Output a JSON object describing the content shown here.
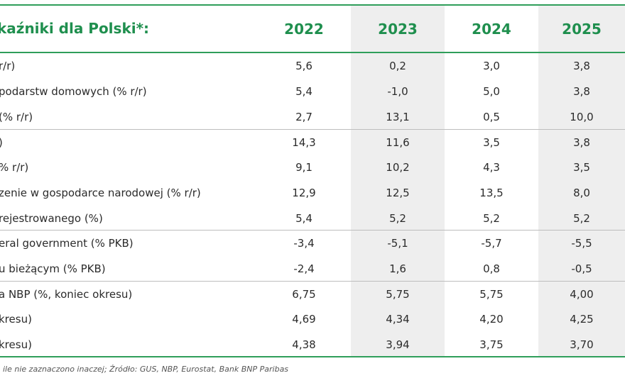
{
  "table": {
    "title": "kaźniki dla Polski*:",
    "years": [
      "2022",
      "2023",
      "2024",
      "2025"
    ],
    "rows": [
      {
        "label": " r/r)",
        "values": [
          "5,6",
          "0,2",
          "3,0",
          "3,8"
        ]
      },
      {
        "label": "podarstw domowych (% r/r)",
        "values": [
          "5,4",
          "-1,0",
          "5,0",
          "3,8"
        ]
      },
      {
        "label": " (% r/r)",
        "values": [
          "2,7",
          "13,1",
          "0,5",
          "10,0"
        ]
      },
      {
        "label": ")",
        "values": [
          "14,3",
          "11,6",
          "3,5",
          "3,8"
        ]
      },
      {
        "label": "% r/r)",
        "values": [
          "9,1",
          "10,2",
          "4,3",
          "3,5"
        ]
      },
      {
        "label": "zenie w gospodarce narodowej (% r/r)",
        "values": [
          "12,9",
          "12,5",
          "13,5",
          "8,0"
        ]
      },
      {
        "label": "rejestrowanego (%)",
        "values": [
          "5,4",
          "5,2",
          "5,2",
          "5,2"
        ]
      },
      {
        "label": "eral government (% PKB)",
        "values": [
          "-3,4",
          "-5,1",
          "-5,7",
          "-5,5"
        ]
      },
      {
        "label": "u bieżącym (% PKB)",
        "values": [
          "-2,4",
          "1,6",
          "0,8",
          "-0,5"
        ]
      },
      {
        "label": "a NBP (%, koniec okresu)",
        "values": [
          "6,75",
          "5,75",
          "5,75",
          "4,00"
        ]
      },
      {
        "label": "kresu)",
        "values": [
          "4,69",
          "4,34",
          "4,20",
          "4,25"
        ]
      },
      {
        "label": "kresu)",
        "values": [
          "4,38",
          "3,94",
          "3,75",
          "3,70"
        ]
      }
    ],
    "footnote": " ile nie zaznaczono inaczej; Źródło: GUS, NBP, Eurostat, Bank BNP Paribas"
  },
  "colors": {
    "accent_green": "#1f8f4e",
    "rule_green": "#2f9e5a",
    "column_shade": "#eeeeee",
    "separator": "#bdbdbd"
  }
}
